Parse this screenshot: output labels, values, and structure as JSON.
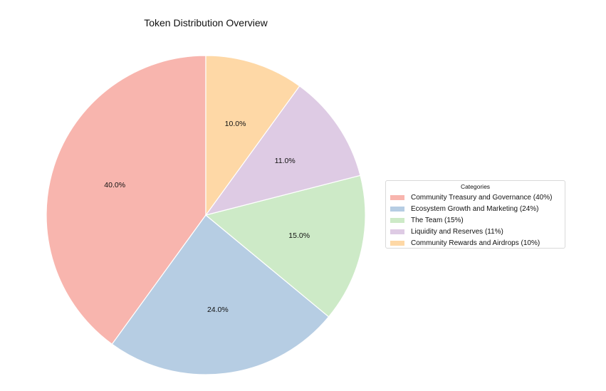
{
  "chart_data": {
    "type": "pie",
    "title": "Token Distribution Overview",
    "legend_title": "Categories",
    "legend_position": "center-right",
    "start_angle_deg": 90,
    "direction": "counterclockwise",
    "slices": [
      {
        "label": "Community Treasury and Governance (40%)",
        "value": 40,
        "pct_label": "40.0%",
        "color": "#f8b5ae"
      },
      {
        "label": "Ecosystem Growth and Marketing (24%)",
        "value": 24,
        "pct_label": "24.0%",
        "color": "#b6cde3"
      },
      {
        "label": "The Team (15%)",
        "value": 15,
        "pct_label": "15.0%",
        "color": "#cdeac7"
      },
      {
        "label": "Liquidity and Reserves (11%)",
        "value": 11,
        "pct_label": "11.0%",
        "color": "#decbe4"
      },
      {
        "label": "Community Rewards and Airdrops (10%)",
        "value": 10,
        "pct_label": "10.0%",
        "color": "#fed8a6"
      }
    ]
  }
}
